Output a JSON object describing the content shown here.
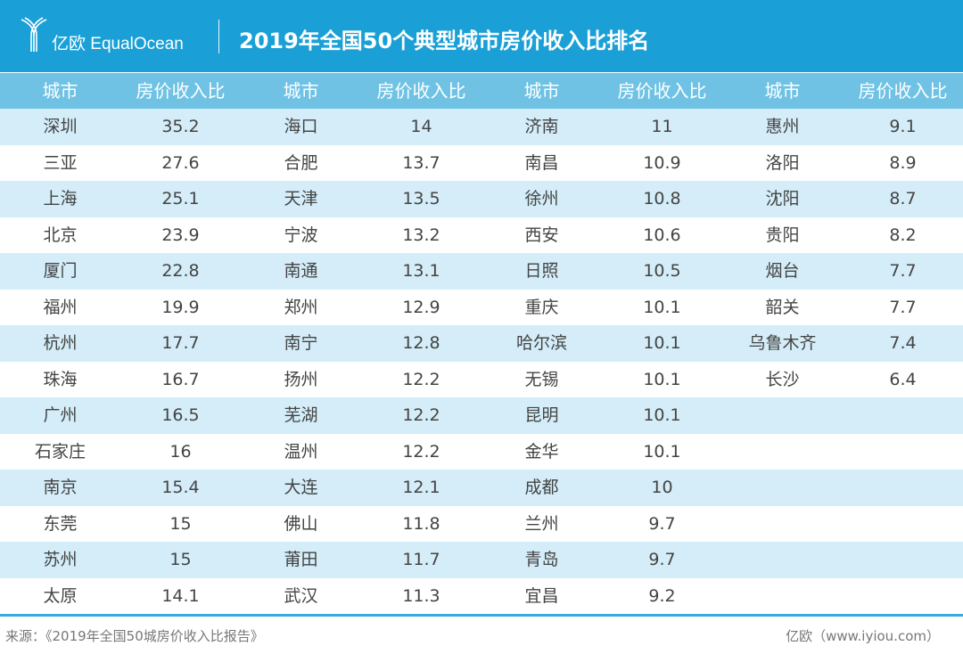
{
  "header": {
    "brand_cn": "亿欧",
    "brand_en": "EqualOcean",
    "title": "2019年全国50个典型城市房价收入比排名"
  },
  "colors": {
    "header": "#1aa0d6",
    "column_header": "#6fc2e4",
    "alt_row": "#d4edf8"
  },
  "chart_data": {
    "type": "table",
    "columns": [
      "城市",
      "房价收入比",
      "城市",
      "房价收入比",
      "城市",
      "房价收入比",
      "城市",
      "房价收入比"
    ],
    "rows": [
      [
        "深圳",
        "35.2",
        "海口",
        "14",
        "济南",
        "11",
        "惠州",
        "9.1"
      ],
      [
        "三亚",
        "27.6",
        "合肥",
        "13.7",
        "南昌",
        "10.9",
        "洛阳",
        "8.9"
      ],
      [
        "上海",
        "25.1",
        "天津",
        "13.5",
        "徐州",
        "10.8",
        "沈阳",
        "8.7"
      ],
      [
        "北京",
        "23.9",
        "宁波",
        "13.2",
        "西安",
        "10.6",
        "贵阳",
        "8.2"
      ],
      [
        "厦门",
        "22.8",
        "南通",
        "13.1",
        "日照",
        "10.5",
        "烟台",
        "7.7"
      ],
      [
        "福州",
        "19.9",
        "郑州",
        "12.9",
        "重庆",
        "10.1",
        "韶关",
        "7.7"
      ],
      [
        "杭州",
        "17.7",
        "南宁",
        "12.8",
        "哈尔滨",
        "10.1",
        "乌鲁木齐",
        "7.4"
      ],
      [
        "珠海",
        "16.7",
        "扬州",
        "12.2",
        "无锡",
        "10.1",
        "长沙",
        "6.4"
      ],
      [
        "广州",
        "16.5",
        "芜湖",
        "12.2",
        "昆明",
        "10.1",
        "",
        ""
      ],
      [
        "石家庄",
        "16",
        "温州",
        "12.2",
        "金华",
        "10.1",
        "",
        ""
      ],
      [
        "南京",
        "15.4",
        "大连",
        "12.1",
        "成都",
        "10",
        "",
        ""
      ],
      [
        "东莞",
        "15",
        "佛山",
        "11.8",
        "兰州",
        "9.7",
        "",
        ""
      ],
      [
        "苏州",
        "15",
        "莆田",
        "11.7",
        "青岛",
        "9.7",
        "",
        ""
      ],
      [
        "太原",
        "14.1",
        "武汉",
        "11.3",
        "宜昌",
        "9.2",
        "",
        ""
      ]
    ]
  },
  "footer": {
    "source": "来源：《2019年全国50城房价收入比报告》",
    "site": "亿欧（www.iyiou.com）"
  }
}
